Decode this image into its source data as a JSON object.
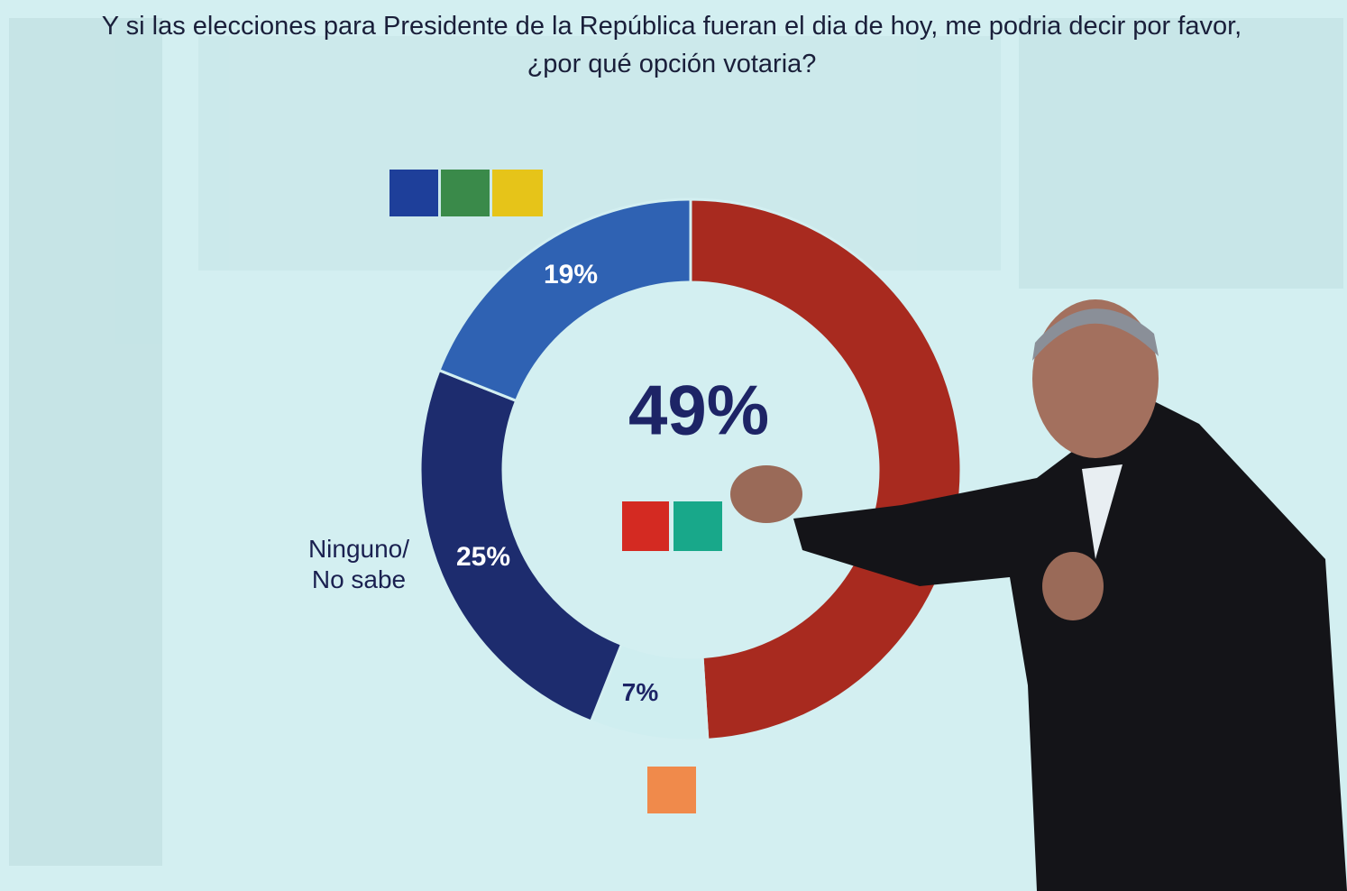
{
  "chart_data": {
    "type": "donut",
    "title": "Y si las elecciones para Presidente de la República fueran el dia de hoy, me podria decir por favor, ¿por qué opción votaria?",
    "categories": [
      null,
      null,
      "Ninguno/ No sabe",
      null
    ],
    "values": [
      49,
      7,
      25,
      19
    ],
    "value_labels": [
      "49%",
      "7%",
      "25%",
      "19%"
    ],
    "colors": [
      "#a82a1f",
      "#cfeef0",
      "#1d2c6e",
      "#2f62b3"
    ]
  }
}
